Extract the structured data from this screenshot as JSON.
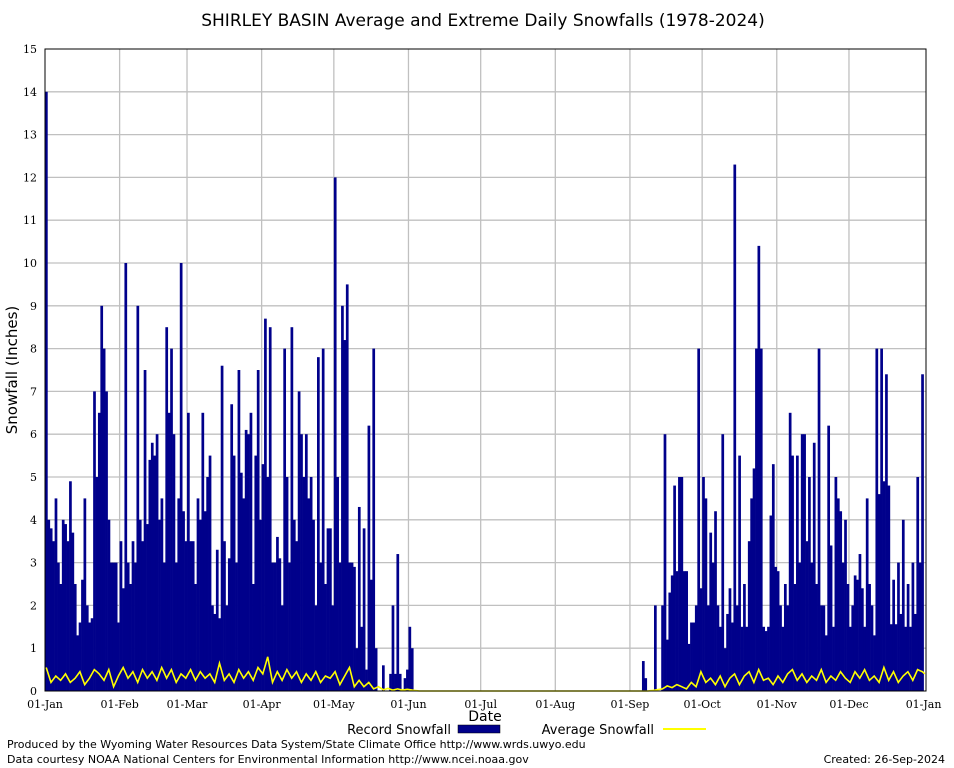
{
  "chart_data": {
    "type": "bar",
    "title": "SHIRLEY BASIN Average and Extreme Daily Snowfalls (1978-2024)",
    "xlabel": "Date",
    "ylabel": "Snowfall (Inches)",
    "ylim": [
      0,
      15
    ],
    "yticks": [
      "0",
      "1",
      "2",
      "3",
      "4",
      "5",
      "6",
      "7",
      "8",
      "9",
      "10",
      "11",
      "12",
      "13",
      "14",
      "15"
    ],
    "xticks": [
      "01-Jan",
      "01-Feb",
      "01-Mar",
      "01-Apr",
      "01-May",
      "01-Jun",
      "01-Jul",
      "01-Aug",
      "01-Sep",
      "01-Oct",
      "01-Nov",
      "01-Dec",
      "01-Jan"
    ],
    "xtick_days": [
      0,
      31,
      59,
      90,
      120,
      151,
      181,
      212,
      243,
      273,
      304,
      334,
      365
    ],
    "grid": true,
    "legend_position": "bottom",
    "record_keypoints": [
      [
        0,
        14.0
      ],
      [
        1,
        4.0
      ],
      [
        2,
        3.8
      ],
      [
        3,
        3.5
      ],
      [
        4,
        4.5
      ],
      [
        5,
        3.0
      ],
      [
        6,
        2.5
      ],
      [
        7,
        4.0
      ],
      [
        8,
        3.9
      ],
      [
        9,
        3.5
      ],
      [
        10,
        4.9
      ],
      [
        11,
        3.7
      ],
      [
        12,
        2.5
      ],
      [
        13,
        1.3
      ],
      [
        14,
        1.6
      ],
      [
        15,
        2.6
      ],
      [
        16,
        4.5
      ],
      [
        17,
        2.0
      ],
      [
        18,
        1.6
      ],
      [
        19,
        1.7
      ],
      [
        20,
        7.0
      ],
      [
        21,
        5.0
      ],
      [
        22,
        6.5
      ],
      [
        23,
        9.0
      ],
      [
        24,
        8.0
      ],
      [
        25,
        7.0
      ],
      [
        26,
        4.0
      ],
      [
        27,
        3.0
      ],
      [
        28,
        3.0
      ],
      [
        29,
        3.0
      ],
      [
        30,
        1.6
      ],
      [
        31,
        3.5
      ],
      [
        32,
        2.4
      ],
      [
        33,
        10.0
      ],
      [
        34,
        3.0
      ],
      [
        35,
        2.5
      ],
      [
        36,
        3.5
      ],
      [
        37,
        3.0
      ],
      [
        38,
        9.0
      ],
      [
        39,
        4.0
      ],
      [
        40,
        3.5
      ],
      [
        41,
        7.5
      ],
      [
        42,
        3.9
      ],
      [
        43,
        5.4
      ],
      [
        44,
        5.8
      ],
      [
        45,
        5.5
      ],
      [
        46,
        6.0
      ],
      [
        47,
        4.0
      ],
      [
        48,
        4.5
      ],
      [
        49,
        3.0
      ],
      [
        50,
        8.5
      ],
      [
        51,
        6.5
      ],
      [
        52,
        8.0
      ],
      [
        53,
        6.0
      ],
      [
        54,
        3.0
      ],
      [
        55,
        4.5
      ],
      [
        56,
        10.0
      ],
      [
        57,
        4.2
      ],
      [
        58,
        3.5
      ],
      [
        59,
        6.5
      ],
      [
        60,
        3.5
      ],
      [
        61,
        3.5
      ],
      [
        62,
        2.5
      ],
      [
        63,
        4.5
      ],
      [
        64,
        4.0
      ],
      [
        65,
        6.5
      ],
      [
        66,
        4.2
      ],
      [
        67,
        5.0
      ],
      [
        68,
        5.5
      ],
      [
        69,
        2.0
      ],
      [
        70,
        1.8
      ],
      [
        71,
        3.3
      ],
      [
        72,
        1.7
      ],
      [
        73,
        7.6
      ],
      [
        74,
        3.5
      ],
      [
        75,
        2.0
      ],
      [
        76,
        3.1
      ],
      [
        77,
        6.7
      ],
      [
        78,
        5.5
      ],
      [
        79,
        3.0
      ],
      [
        80,
        7.5
      ],
      [
        81,
        5.1
      ],
      [
        82,
        4.5
      ],
      [
        83,
        6.1
      ],
      [
        84,
        6.0
      ],
      [
        85,
        6.5
      ],
      [
        86,
        2.5
      ],
      [
        87,
        5.5
      ],
      [
        88,
        7.5
      ],
      [
        89,
        4.0
      ],
      [
        90,
        5.3
      ],
      [
        91,
        8.7
      ],
      [
        92,
        5.0
      ],
      [
        93,
        8.5
      ],
      [
        94,
        3.0
      ],
      [
        95,
        3.0
      ],
      [
        96,
        3.6
      ],
      [
        97,
        3.1
      ],
      [
        98,
        2.0
      ],
      [
        99,
        8.0
      ],
      [
        100,
        5.0
      ],
      [
        101,
        3.0
      ],
      [
        102,
        8.5
      ],
      [
        103,
        4.0
      ],
      [
        104,
        3.5
      ],
      [
        105,
        7.0
      ],
      [
        106,
        6.0
      ],
      [
        107,
        5.0
      ],
      [
        108,
        6.0
      ],
      [
        109,
        4.5
      ],
      [
        110,
        5.0
      ],
      [
        111,
        4.0
      ],
      [
        112,
        2.0
      ],
      [
        113,
        7.8
      ],
      [
        114,
        3.0
      ],
      [
        115,
        8.0
      ],
      [
        116,
        2.5
      ],
      [
        117,
        3.8
      ],
      [
        118,
        3.8
      ],
      [
        119,
        2.0
      ],
      [
        120,
        12.0
      ],
      [
        121,
        5.0
      ],
      [
        122,
        3.0
      ],
      [
        123,
        9.0
      ],
      [
        124,
        8.2
      ],
      [
        125,
        9.5
      ],
      [
        126,
        3.0
      ],
      [
        127,
        3.0
      ],
      [
        128,
        2.9
      ],
      [
        129,
        1.0
      ],
      [
        130,
        4.3
      ],
      [
        131,
        1.5
      ],
      [
        132,
        3.8
      ],
      [
        133,
        0.5
      ],
      [
        134,
        6.2
      ],
      [
        135,
        2.6
      ],
      [
        136,
        8.0
      ],
      [
        137,
        1.0
      ],
      [
        138,
        0.0
      ],
      [
        139,
        0.0
      ],
      [
        140,
        0.6
      ],
      [
        141,
        0.0
      ],
      [
        142,
        0.0
      ],
      [
        143,
        0.4
      ],
      [
        144,
        2.0
      ],
      [
        145,
        0.4
      ],
      [
        146,
        3.2
      ],
      [
        147,
        0.4
      ],
      [
        148,
        0.0
      ],
      [
        149,
        0.3
      ],
      [
        150,
        0.5
      ],
      [
        151,
        1.5
      ],
      [
        152,
        1.0
      ],
      [
        153,
        0.0
      ],
      [
        243,
        0.0
      ],
      [
        248,
        0.7
      ],
      [
        249,
        0.3
      ],
      [
        252,
        0.0
      ],
      [
        253,
        2.0
      ],
      [
        255,
        0.0
      ],
      [
        256,
        2.0
      ],
      [
        257,
        6.0
      ],
      [
        258,
        1.2
      ],
      [
        259,
        2.3
      ],
      [
        260,
        2.7
      ],
      [
        261,
        4.8
      ],
      [
        262,
        2.8
      ],
      [
        263,
        5.0
      ],
      [
        264,
        5.0
      ],
      [
        265,
        2.8
      ],
      [
        266,
        2.8
      ],
      [
        267,
        1.1
      ],
      [
        268,
        1.6
      ],
      [
        269,
        1.6
      ],
      [
        270,
        2.0
      ],
      [
        271,
        8.0
      ],
      [
        272,
        2.4
      ],
      [
        273,
        5.0
      ],
      [
        274,
        4.5
      ],
      [
        275,
        2.0
      ],
      [
        276,
        3.7
      ],
      [
        277,
        3.0
      ],
      [
        278,
        4.2
      ],
      [
        279,
        2.0
      ],
      [
        280,
        1.5
      ],
      [
        281,
        6.0
      ],
      [
        282,
        1.0
      ],
      [
        283,
        1.8
      ],
      [
        284,
        2.4
      ],
      [
        285,
        1.6
      ],
      [
        286,
        12.3
      ],
      [
        287,
        2.0
      ],
      [
        288,
        5.5
      ],
      [
        289,
        1.5
      ],
      [
        290,
        2.5
      ],
      [
        291,
        1.5
      ],
      [
        292,
        3.5
      ],
      [
        293,
        4.5
      ],
      [
        294,
        5.2
      ],
      [
        295,
        8.0
      ],
      [
        296,
        10.4
      ],
      [
        297,
        8.0
      ],
      [
        298,
        1.5
      ],
      [
        299,
        1.4
      ],
      [
        300,
        1.5
      ],
      [
        301,
        4.1
      ],
      [
        302,
        5.3
      ],
      [
        303,
        2.9
      ],
      [
        304,
        2.8
      ],
      [
        305,
        2.0
      ],
      [
        306,
        1.5
      ],
      [
        307,
        2.5
      ],
      [
        308,
        2.0
      ],
      [
        309,
        6.5
      ],
      [
        310,
        5.5
      ],
      [
        311,
        2.5
      ],
      [
        312,
        5.5
      ],
      [
        313,
        3.0
      ],
      [
        314,
        6.0
      ],
      [
        315,
        6.0
      ],
      [
        316,
        3.5
      ],
      [
        317,
        5.0
      ],
      [
        318,
        3.0
      ],
      [
        319,
        5.8
      ],
      [
        320,
        2.5
      ],
      [
        321,
        8.0
      ],
      [
        322,
        2.0
      ],
      [
        323,
        2.0
      ],
      [
        324,
        1.3
      ],
      [
        325,
        6.2
      ],
      [
        326,
        3.4
      ],
      [
        327,
        1.5
      ],
      [
        328,
        5.0
      ],
      [
        329,
        4.5
      ],
      [
        330,
        4.2
      ],
      [
        331,
        3.0
      ],
      [
        332,
        4.0
      ],
      [
        333,
        2.5
      ],
      [
        334,
        1.5
      ],
      [
        335,
        2.0
      ],
      [
        336,
        2.7
      ],
      [
        337,
        2.6
      ],
      [
        338,
        3.2
      ],
      [
        339,
        2.4
      ],
      [
        340,
        1.5
      ],
      [
        341,
        4.5
      ],
      [
        342,
        2.5
      ],
      [
        343,
        2.0
      ],
      [
        344,
        1.3
      ],
      [
        345,
        8.0
      ],
      [
        346,
        4.6
      ],
      [
        347,
        8.0
      ],
      [
        348,
        4.9
      ],
      [
        349,
        7.4
      ],
      [
        350,
        4.8
      ],
      [
        352,
        2.6
      ],
      [
        354,
        3.0
      ],
      [
        356,
        4.0
      ],
      [
        358,
        2.5
      ],
      [
        360,
        3.0
      ],
      [
        362,
        5.0
      ],
      [
        364,
        7.4
      ]
    ],
    "average_keypoints": [
      [
        0,
        0.55
      ],
      [
        2,
        0.2
      ],
      [
        4,
        0.35
      ],
      [
        6,
        0.25
      ],
      [
        8,
        0.4
      ],
      [
        10,
        0.2
      ],
      [
        12,
        0.3
      ],
      [
        14,
        0.45
      ],
      [
        16,
        0.15
      ],
      [
        18,
        0.3
      ],
      [
        20,
        0.5
      ],
      [
        22,
        0.4
      ],
      [
        24,
        0.25
      ],
      [
        26,
        0.5
      ],
      [
        28,
        0.1
      ],
      [
        30,
        0.35
      ],
      [
        32,
        0.55
      ],
      [
        34,
        0.3
      ],
      [
        36,
        0.45
      ],
      [
        38,
        0.2
      ],
      [
        40,
        0.5
      ],
      [
        42,
        0.3
      ],
      [
        44,
        0.45
      ],
      [
        46,
        0.25
      ],
      [
        48,
        0.55
      ],
      [
        50,
        0.3
      ],
      [
        52,
        0.5
      ],
      [
        54,
        0.2
      ],
      [
        56,
        0.4
      ],
      [
        58,
        0.3
      ],
      [
        60,
        0.5
      ],
      [
        62,
        0.25
      ],
      [
        64,
        0.45
      ],
      [
        66,
        0.3
      ],
      [
        68,
        0.4
      ],
      [
        70,
        0.2
      ],
      [
        72,
        0.65
      ],
      [
        74,
        0.25
      ],
      [
        76,
        0.4
      ],
      [
        78,
        0.2
      ],
      [
        80,
        0.5
      ],
      [
        82,
        0.3
      ],
      [
        84,
        0.45
      ],
      [
        86,
        0.25
      ],
      [
        88,
        0.55
      ],
      [
        90,
        0.4
      ],
      [
        92,
        0.8
      ],
      [
        94,
        0.2
      ],
      [
        96,
        0.45
      ],
      [
        98,
        0.25
      ],
      [
        100,
        0.5
      ],
      [
        102,
        0.3
      ],
      [
        104,
        0.45
      ],
      [
        106,
        0.2
      ],
      [
        108,
        0.4
      ],
      [
        110,
        0.25
      ],
      [
        112,
        0.45
      ],
      [
        114,
        0.2
      ],
      [
        116,
        0.35
      ],
      [
        118,
        0.3
      ],
      [
        120,
        0.45
      ],
      [
        122,
        0.15
      ],
      [
        124,
        0.35
      ],
      [
        126,
        0.55
      ],
      [
        128,
        0.1
      ],
      [
        130,
        0.25
      ],
      [
        132,
        0.1
      ],
      [
        134,
        0.2
      ],
      [
        136,
        0.05
      ],
      [
        138,
        0.1
      ],
      [
        140,
        0.03
      ],
      [
        142,
        0.06
      ],
      [
        144,
        0.02
      ],
      [
        146,
        0.05
      ],
      [
        148,
        0.02
      ],
      [
        150,
        0.04
      ],
      [
        152,
        0.02
      ],
      [
        155,
        0.0
      ],
      [
        250,
        0.0
      ],
      [
        253,
        0.02
      ],
      [
        256,
        0.05
      ],
      [
        258,
        0.12
      ],
      [
        260,
        0.08
      ],
      [
        262,
        0.15
      ],
      [
        264,
        0.1
      ],
      [
        266,
        0.05
      ],
      [
        268,
        0.2
      ],
      [
        270,
        0.1
      ],
      [
        272,
        0.45
      ],
      [
        274,
        0.2
      ],
      [
        276,
        0.3
      ],
      [
        278,
        0.15
      ],
      [
        280,
        0.35
      ],
      [
        282,
        0.1
      ],
      [
        284,
        0.3
      ],
      [
        286,
        0.4
      ],
      [
        288,
        0.15
      ],
      [
        290,
        0.35
      ],
      [
        292,
        0.45
      ],
      [
        294,
        0.2
      ],
      [
        296,
        0.5
      ],
      [
        298,
        0.25
      ],
      [
        300,
        0.3
      ],
      [
        302,
        0.15
      ],
      [
        304,
        0.35
      ],
      [
        306,
        0.2
      ],
      [
        308,
        0.4
      ],
      [
        310,
        0.5
      ],
      [
        312,
        0.25
      ],
      [
        314,
        0.4
      ],
      [
        316,
        0.2
      ],
      [
        318,
        0.35
      ],
      [
        320,
        0.25
      ],
      [
        322,
        0.5
      ],
      [
        324,
        0.2
      ],
      [
        326,
        0.35
      ],
      [
        328,
        0.25
      ],
      [
        330,
        0.45
      ],
      [
        332,
        0.3
      ],
      [
        334,
        0.2
      ],
      [
        336,
        0.45
      ],
      [
        338,
        0.3
      ],
      [
        340,
        0.5
      ],
      [
        342,
        0.25
      ],
      [
        344,
        0.35
      ],
      [
        346,
        0.2
      ],
      [
        348,
        0.55
      ],
      [
        350,
        0.25
      ],
      [
        352,
        0.45
      ],
      [
        354,
        0.2
      ],
      [
        356,
        0.35
      ],
      [
        358,
        0.45
      ],
      [
        360,
        0.25
      ],
      [
        362,
        0.5
      ],
      [
        364,
        0.45
      ],
      [
        365,
        0.4
      ]
    ],
    "series": [
      {
        "name": "Record Snowfall",
        "color": "#00008b"
      },
      {
        "name": "Average Snowfall",
        "color": "#ffff00"
      }
    ]
  },
  "footer": {
    "produced_by": "Produced by the Wyoming Water Resources Data System/State Climate Office http://www.wrds.uwyo.edu",
    "data_courtesy": "Data courtesy NOAA National Centers for Environmental Information http://www.ncei.noaa.gov",
    "created": "Created:  26-Sep-2024"
  }
}
